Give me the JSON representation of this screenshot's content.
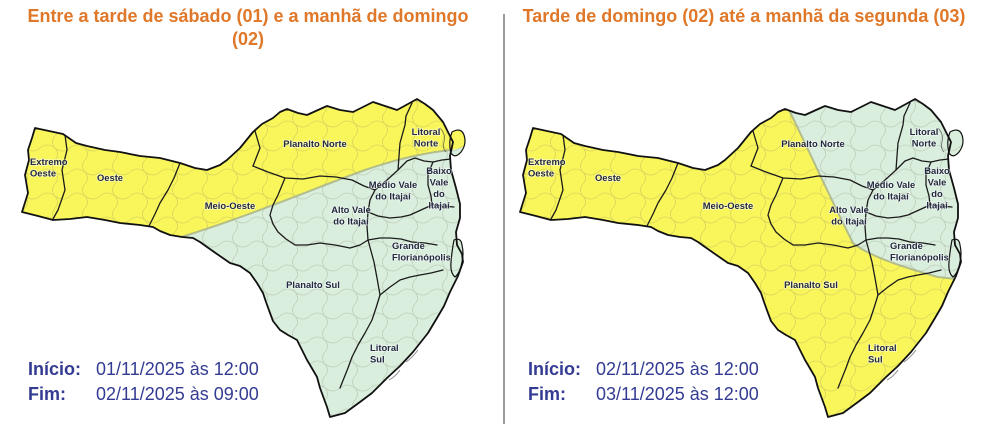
{
  "panels": [
    {
      "title": "Entre a tarde de sábado (01) e a manhã de domingo (02)",
      "period": {
        "inicio_label": "Início:",
        "inicio_value": "01/11/2025 às 12:00",
        "fim_label": "Fim:",
        "fim_value": "02/11/2025 às 09:00"
      },
      "alert_zones": {
        "yellow_covers": "northwest",
        "green_covers": "southeast"
      }
    },
    {
      "title": "Tarde de domingo (02)  até a manhã da segunda (03)",
      "period": {
        "inicio_label": "Início:",
        "inicio_value": "02/11/2025 às 12:00",
        "fim_label": "Fim:",
        "fim_value": "03/11/2025 às 12:00"
      },
      "alert_zones": {
        "yellow_covers": "west-south",
        "green_covers": "northeast"
      }
    }
  ],
  "map": {
    "regions": [
      "Extremo Oeste",
      "Oeste",
      "Meio-Oeste",
      "Planalto Norte",
      "Litoral Norte",
      "Médio Vale do Itajaí",
      "Baixo Vale do Itajaí",
      "Alto Vale do Itajaí",
      "Grande Florianópolis",
      "Planalto Sul",
      "Litoral Sul"
    ]
  },
  "colors": {
    "alert_yellow": "#F9F65C",
    "alert_green": "#D9EEDC",
    "title_orange": "#E0782A",
    "period_navy": "#333B92",
    "region_border": "#1b1b1b",
    "state_border": "#111111",
    "divider_gray": "#9a9a9a",
    "zone_boundary": "#A9B487",
    "label_dark": "#232940",
    "municipal_line": "#74745c"
  }
}
